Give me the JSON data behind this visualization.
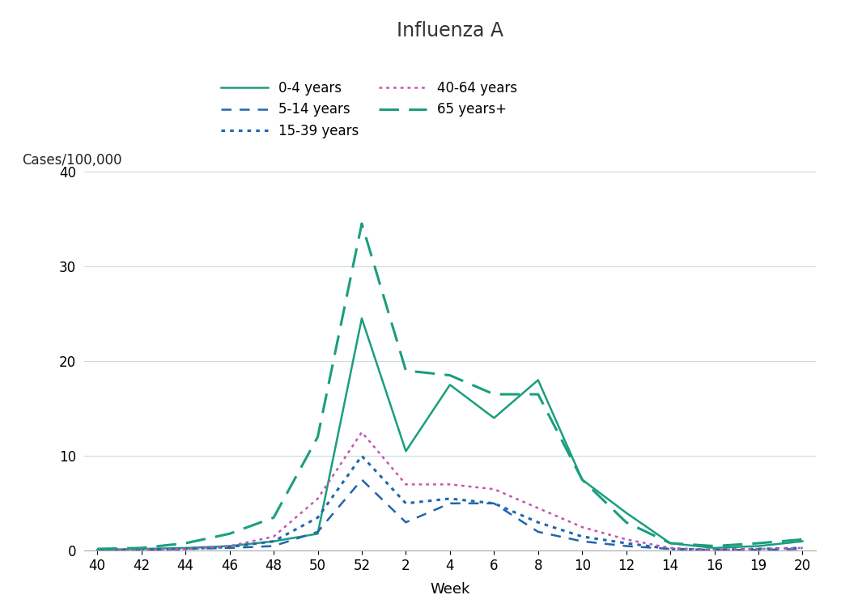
{
  "title": "Influenza A",
  "xlabel": "Week",
  "ylabel": "Cases/100,000",
  "x_tick_labels": [
    40,
    42,
    44,
    46,
    48,
    50,
    52,
    2,
    4,
    6,
    8,
    10,
    12,
    14,
    16,
    19,
    20
  ],
  "ylim": [
    0,
    40
  ],
  "yticks": [
    0,
    10,
    20,
    30,
    40
  ],
  "background_color": "#ffffff",
  "grid_color": "#c8dce0",
  "title_fontsize": 17,
  "label_fontsize": 13,
  "tick_fontsize": 12,
  "legend_fontsize": 12,
  "series": {
    "0-4 years": {
      "color": "#1a9e7e",
      "linestyle": "solid",
      "linewidth": 1.8,
      "y": [
        0.1,
        0.2,
        0.3,
        0.5,
        1.0,
        1.8,
        24.5,
        10.5,
        17.5,
        14.0,
        18.0,
        7.5,
        4.0,
        0.8,
        0.3,
        0.5,
        1.0
      ]
    },
    "5-14 years": {
      "color": "#2166ac",
      "linestyle": "dashed",
      "linewidth": 1.8,
      "y": [
        0.1,
        0.1,
        0.2,
        0.3,
        0.5,
        2.0,
        7.5,
        3.0,
        5.0,
        5.0,
        2.0,
        1.0,
        0.5,
        0.2,
        0.1,
        0.1,
        0.2
      ]
    },
    "15-39 years": {
      "color": "#2166ac",
      "linestyle": "dotted",
      "linewidth": 2.2,
      "y": [
        0.1,
        0.1,
        0.2,
        0.4,
        1.0,
        3.5,
        10.0,
        5.0,
        5.5,
        5.0,
        3.0,
        1.5,
        0.8,
        0.2,
        0.1,
        0.2,
        0.3
      ]
    },
    "40-64 years": {
      "color": "#c655b0",
      "linestyle": "dotted",
      "linewidth": 1.8,
      "y": [
        0.1,
        0.1,
        0.2,
        0.5,
        1.5,
        5.5,
        12.5,
        7.0,
        7.0,
        6.5,
        4.5,
        2.5,
        1.2,
        0.3,
        0.1,
        0.2,
        0.3
      ]
    },
    "65 years+": {
      "color": "#1a9e7e",
      "linestyle": "dashed_long",
      "linewidth": 2.2,
      "y": [
        0.2,
        0.3,
        0.8,
        1.8,
        3.5,
        12.0,
        34.5,
        19.0,
        18.5,
        16.5,
        16.5,
        7.5,
        3.0,
        0.8,
        0.5,
        0.8,
        1.2
      ]
    }
  }
}
